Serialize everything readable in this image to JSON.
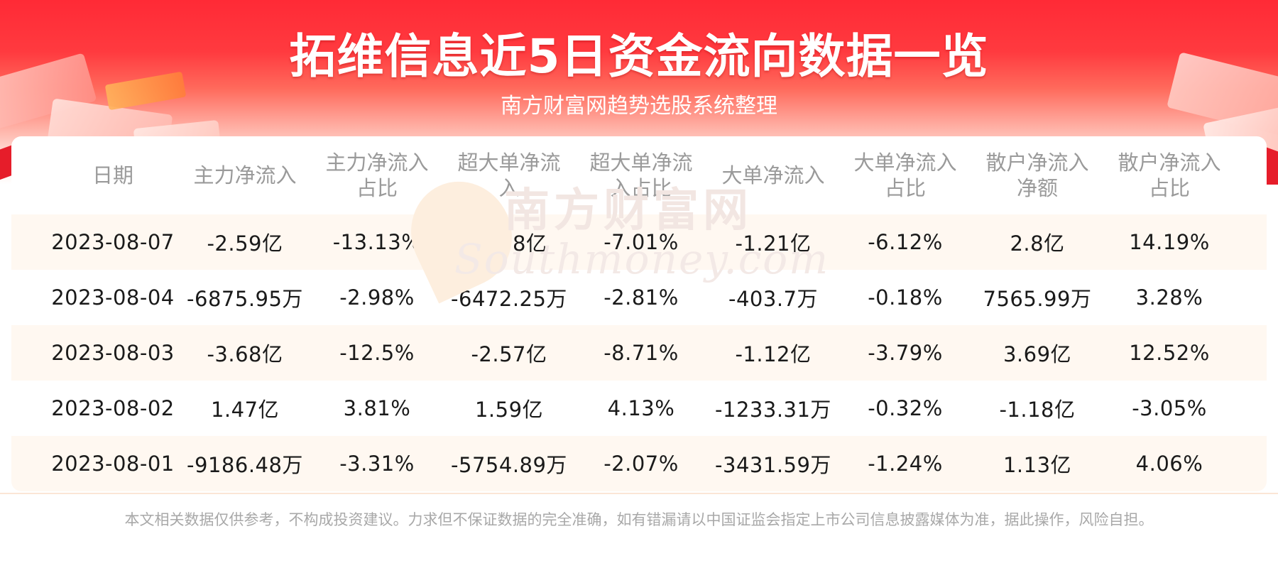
{
  "header": {
    "title": "拓维信息近5日资金流向数据一览",
    "subtitle": "南方财富网趋势选股系统整理"
  },
  "watermark": {
    "cn": "南方财富网",
    "en": "Southmoney.com"
  },
  "table": {
    "columns": [
      "日期",
      "主力净流入",
      "主力净流入\n占比",
      "超大单净流\n入",
      "超大单净流\n入占比",
      "大单净流入",
      "大单净流入\n占比",
      "散户净流入\n净额",
      "散户净流入\n占比"
    ],
    "rows": [
      [
        "2023-08-07",
        "-2.59亿",
        "-13.13%",
        "-1.38亿",
        "-7.01%",
        "-1.21亿",
        "-6.12%",
        "2.8亿",
        "14.19%"
      ],
      [
        "2023-08-04",
        "-6875.95万",
        "-2.98%",
        "-6472.25万",
        "-2.81%",
        "-403.7万",
        "-0.18%",
        "7565.99万",
        "3.28%"
      ],
      [
        "2023-08-03",
        "-3.68亿",
        "-12.5%",
        "-2.57亿",
        "-8.71%",
        "-1.12亿",
        "-3.79%",
        "3.69亿",
        "12.52%"
      ],
      [
        "2023-08-02",
        "1.47亿",
        "3.81%",
        "1.59亿",
        "4.13%",
        "-1233.31万",
        "-0.32%",
        "-1.18亿",
        "-3.05%"
      ],
      [
        "2023-08-01",
        "-9186.48万",
        "-3.31%",
        "-5754.89万",
        "-2.07%",
        "-3431.59万",
        "-1.24%",
        "1.13亿",
        "4.06%"
      ]
    ]
  },
  "footer": {
    "disclaimer": "本文相关数据仅供参考，不构成投资建议。力求但不保证数据的完全准确，如有错漏请以中国证监会指定上市公司信息披露媒体为准，据此操作，风险自担。"
  },
  "colors": {
    "banner_red": "#ff2a36",
    "header_text": "#9a9a9a",
    "row_stripe": "#fff8f1",
    "body_text": "#1a1a1a"
  }
}
